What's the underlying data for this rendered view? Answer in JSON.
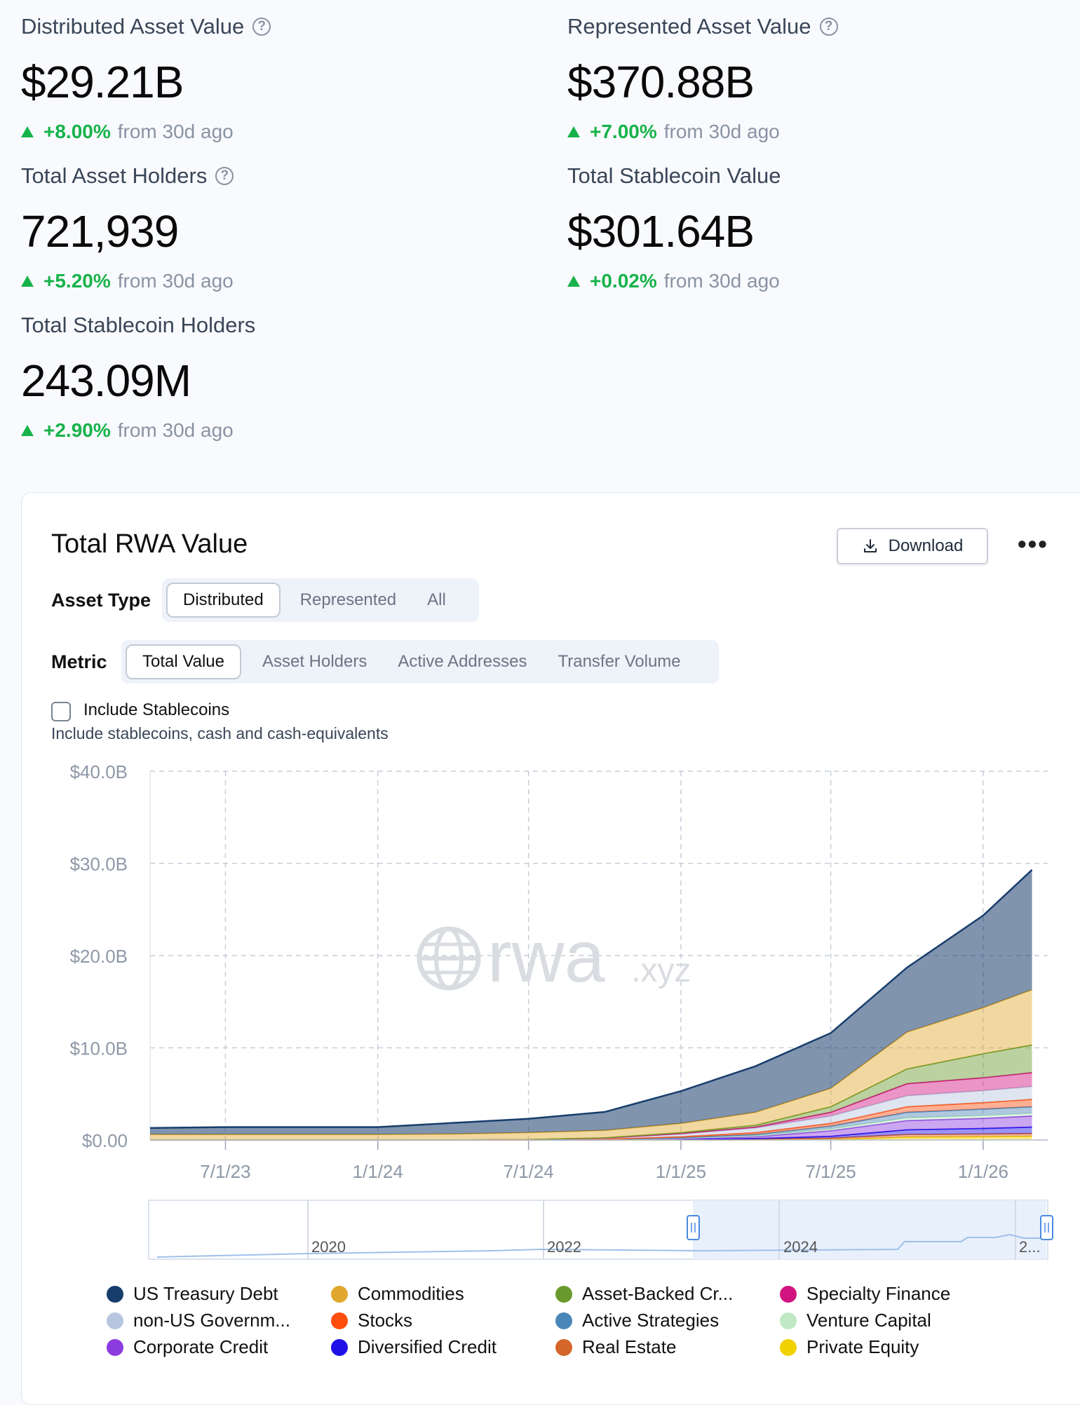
{
  "stats": [
    {
      "label": "Distributed Asset Value",
      "help": true,
      "value": "$29.21B",
      "change": "+8.00%",
      "since": "from 30d ago"
    },
    {
      "label": "Represented Asset Value",
      "help": true,
      "value": "$370.88B",
      "change": "+7.00%",
      "since": "from 30d ago"
    },
    {
      "label": "Total Asset Holders",
      "help": true,
      "value": "721,939",
      "change": "+5.20%",
      "since": "from 30d ago"
    },
    {
      "label": "Total Stablecoin Value",
      "help": false,
      "value": "$301.64B",
      "change": "+0.02%",
      "since": "from 30d ago"
    },
    {
      "label": "Total Stablecoin Holders",
      "help": false,
      "value": "243.09M",
      "change": "+2.90%",
      "since": "from 30d ago"
    }
  ],
  "card": {
    "title": "Total RWA Value",
    "download_label": "Download",
    "more_label": "•••",
    "asset_type_label": "Asset Type",
    "asset_types": [
      "Distributed",
      "Represented",
      "All"
    ],
    "asset_type_selected": "Distributed",
    "metric_label": "Metric",
    "metrics": [
      "Total Value",
      "Asset Holders",
      "Active Addresses",
      "Transfer Volume"
    ],
    "metric_selected": "Total Value",
    "include_stablecoins_label": "Include Stablecoins",
    "include_stablecoins_checked": false,
    "include_stablecoins_note": "Include stablecoins, cash and cash-equivalents"
  },
  "watermark": {
    "text": "rwa",
    "suffix": ".xyz"
  },
  "chart_data": {
    "type": "area",
    "stacked": true,
    "y_ticks": [
      "$0.00",
      "$10.0B",
      "$20.0B",
      "$30.0B",
      "$40.0B"
    ],
    "ylim": [
      0,
      40
    ],
    "x_ticks": [
      "7/1/23",
      "1/1/24",
      "7/1/24",
      "1/1/25",
      "7/1/25",
      "1/1/26"
    ],
    "x": [
      "2023-04",
      "2023-07",
      "2023-10",
      "2024-01",
      "2024-04",
      "2024-07",
      "2024-10",
      "2025-01",
      "2025-04",
      "2025-07",
      "2025-10",
      "2026-01",
      "2026-03"
    ],
    "series": [
      {
        "name": "Private Equity",
        "color": "#f2d100",
        "values": [
          0,
          0,
          0,
          0,
          0,
          0,
          0,
          0,
          0,
          0.05,
          0.3,
          0.35,
          0.4
        ]
      },
      {
        "name": "Real Estate",
        "color": "#d4662a",
        "values": [
          0,
          0,
          0,
          0,
          0,
          0,
          0.02,
          0.05,
          0.1,
          0.15,
          0.3,
          0.3,
          0.3
        ]
      },
      {
        "name": "Diversified Credit",
        "color": "#1f10e8",
        "values": [
          0,
          0,
          0,
          0,
          0,
          0,
          0,
          0,
          0.05,
          0.2,
          0.5,
          0.6,
          0.7
        ]
      },
      {
        "name": "Corporate Credit",
        "color": "#8b3be0",
        "values": [
          0,
          0,
          0,
          0,
          0,
          0,
          0.02,
          0.1,
          0.2,
          0.6,
          1.0,
          1.1,
          1.2
        ]
      },
      {
        "name": "Venture Capital",
        "color": "#bfe9c4",
        "values": [
          0,
          0,
          0,
          0,
          0,
          0,
          0,
          0.05,
          0.1,
          0.2,
          0.3,
          0.3,
          0.3
        ]
      },
      {
        "name": "Active Strategies",
        "color": "#4b86b8",
        "values": [
          0,
          0,
          0,
          0,
          0,
          0,
          0,
          0.05,
          0.15,
          0.3,
          0.6,
          0.7,
          0.7
        ]
      },
      {
        "name": "Stocks",
        "color": "#ff4d0d",
        "values": [
          0,
          0,
          0,
          0,
          0,
          0,
          0.05,
          0.1,
          0.2,
          0.3,
          0.6,
          0.7,
          0.8
        ]
      },
      {
        "name": "non-US Government Debt",
        "color": "#b7c6de",
        "values": [
          0,
          0,
          0,
          0,
          0,
          0.05,
          0.1,
          0.3,
          0.5,
          0.8,
          1.2,
          1.3,
          1.4
        ]
      },
      {
        "name": "Specialty Finance",
        "color": "#d1147f",
        "values": [
          0,
          0,
          0,
          0,
          0,
          0,
          0.02,
          0.05,
          0.1,
          0.4,
          1.3,
          1.4,
          1.5
        ]
      },
      {
        "name": "Asset-Backed Credit",
        "color": "#6a9a2d",
        "values": [
          0,
          0,
          0,
          0,
          0,
          0,
          0.03,
          0.1,
          0.2,
          0.6,
          1.6,
          2.6,
          3.0
        ]
      },
      {
        "name": "Commodities",
        "color": "#e0a82e",
        "values": [
          0.6,
          0.6,
          0.6,
          0.6,
          0.65,
          0.75,
          0.8,
          1.0,
          1.4,
          2.0,
          4.0,
          5.0,
          6.0
        ]
      },
      {
        "name": "US Treasury Debt",
        "color": "#173d6b",
        "values": [
          0.7,
          0.8,
          0.8,
          0.8,
          1.2,
          1.5,
          2.0,
          3.5,
          5.0,
          6.0,
          7.0,
          10.0,
          13.0
        ]
      }
    ],
    "grid": true,
    "legend_position": "bottom"
  },
  "navigator": {
    "ticks": [
      "2020",
      "2022",
      "2024",
      "2..."
    ]
  },
  "legend": [
    {
      "label": "US Treasury Debt",
      "color": "#173d6b"
    },
    {
      "label": "Commodities",
      "color": "#e0a82e"
    },
    {
      "label": "Asset-Backed Cr...",
      "color": "#6a9a2d"
    },
    {
      "label": "Specialty Finance",
      "color": "#d1147f"
    },
    {
      "label": "non-US Governm...",
      "color": "#b7c6de"
    },
    {
      "label": "Stocks",
      "color": "#ff4d0d"
    },
    {
      "label": "Active Strategies",
      "color": "#4b86b8"
    },
    {
      "label": "Venture Capital",
      "color": "#bfe9c4"
    },
    {
      "label": "Corporate Credit",
      "color": "#8b3be0"
    },
    {
      "label": "Diversified Credit",
      "color": "#1f10e8"
    },
    {
      "label": "Real Estate",
      "color": "#d4662a"
    },
    {
      "label": "Private Equity",
      "color": "#f2d100"
    }
  ]
}
